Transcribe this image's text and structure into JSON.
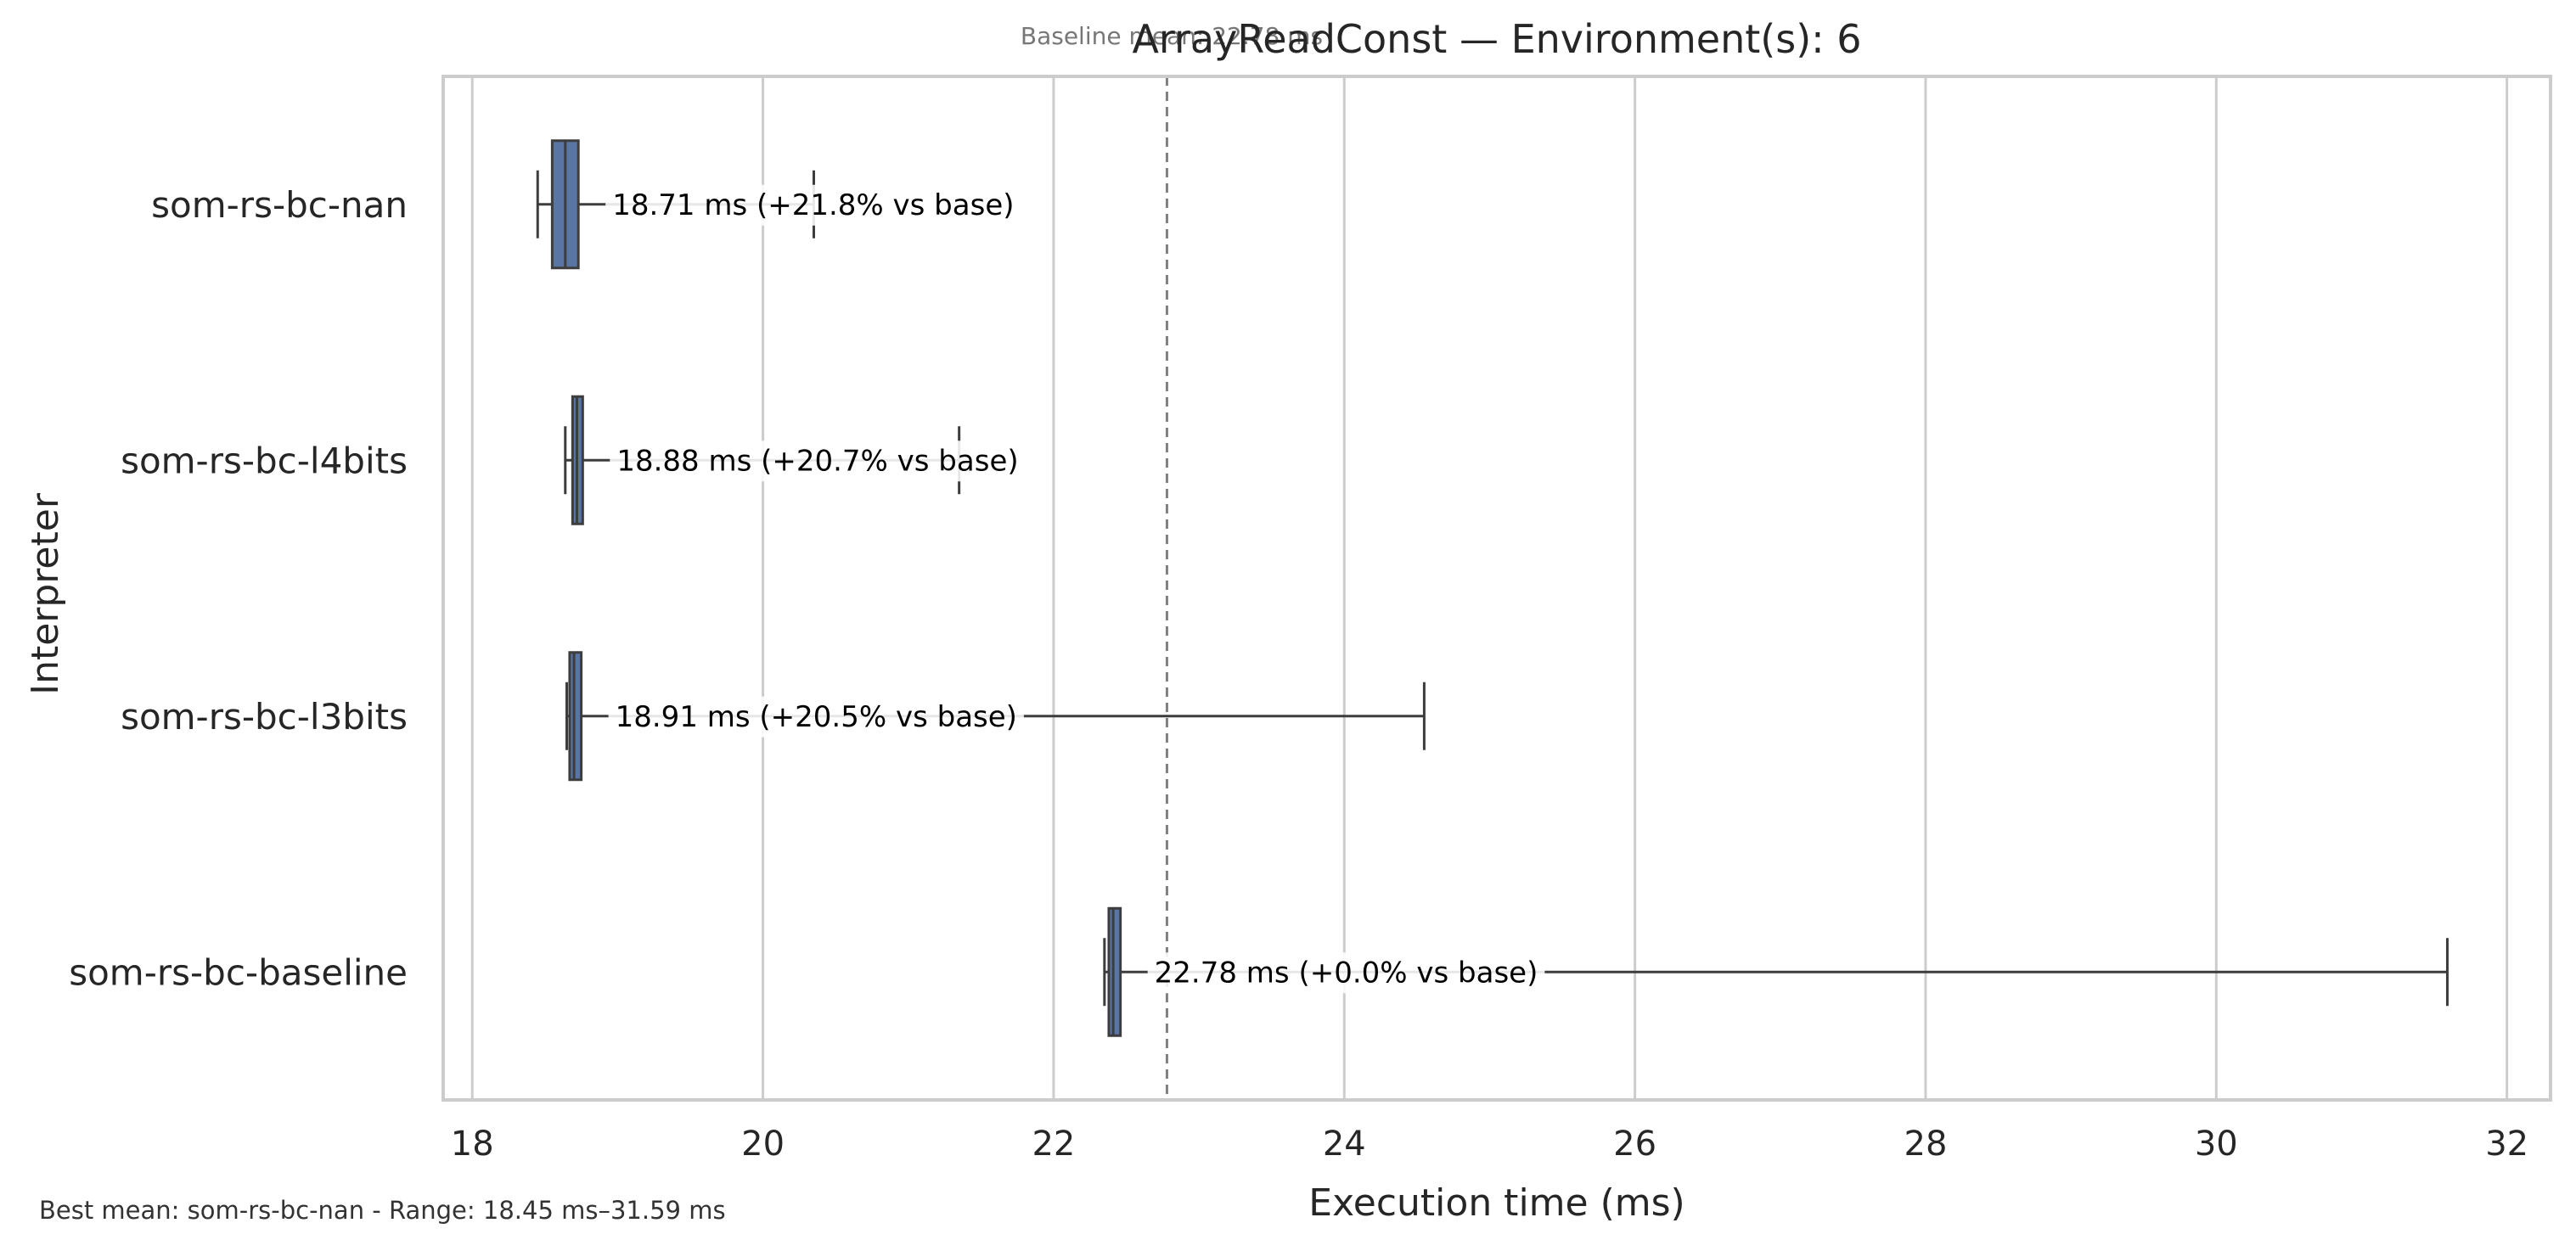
{
  "chart_data": {
    "type": "boxplot",
    "orientation": "horizontal",
    "title": "ArrayReadConst — Environment(s): 6",
    "subtitle": "Baseline mean: 22.78 ms",
    "xlabel": "Execution time (ms)",
    "ylabel": "Interpreter",
    "xlim": [
      17.8,
      32.3
    ],
    "xticks": [
      18,
      20,
      22,
      24,
      26,
      28,
      30,
      32
    ],
    "grid": "vertical",
    "box_color": "#5975a4",
    "baseline_mean": 22.78,
    "categories": [
      "som-rs-bc-nan",
      "som-rs-bc-l4bits",
      "som-rs-bc-l3bits",
      "som-rs-bc-baseline"
    ],
    "boxes": [
      {
        "name": "som-rs-bc-nan",
        "whisker_low": 18.45,
        "q1": 18.55,
        "median": 18.64,
        "q3": 18.73,
        "whisker_high": 20.35,
        "mean": 18.71,
        "label": "18.71 ms  (+21.8% vs base)"
      },
      {
        "name": "som-rs-bc-l4bits",
        "whisker_low": 18.64,
        "q1": 18.69,
        "median": 18.72,
        "q3": 18.76,
        "whisker_high": 21.35,
        "mean": 18.88,
        "label": "18.88 ms  (+20.7% vs base)"
      },
      {
        "name": "som-rs-bc-l3bits",
        "whisker_low": 18.65,
        "q1": 18.67,
        "median": 18.7,
        "q3": 18.75,
        "whisker_high": 24.55,
        "mean": 18.91,
        "label": "18.91 ms  (+20.5% vs base)"
      },
      {
        "name": "som-rs-bc-baseline",
        "whisker_low": 22.35,
        "q1": 22.38,
        "median": 22.41,
        "q3": 22.46,
        "whisker_high": 31.59,
        "mean": 22.78,
        "label": "22.78 ms  (+0.0% vs base)"
      }
    ],
    "footnote": "Best mean: som-rs-bc-nan - Range: 18.45 ms–31.59 ms"
  }
}
